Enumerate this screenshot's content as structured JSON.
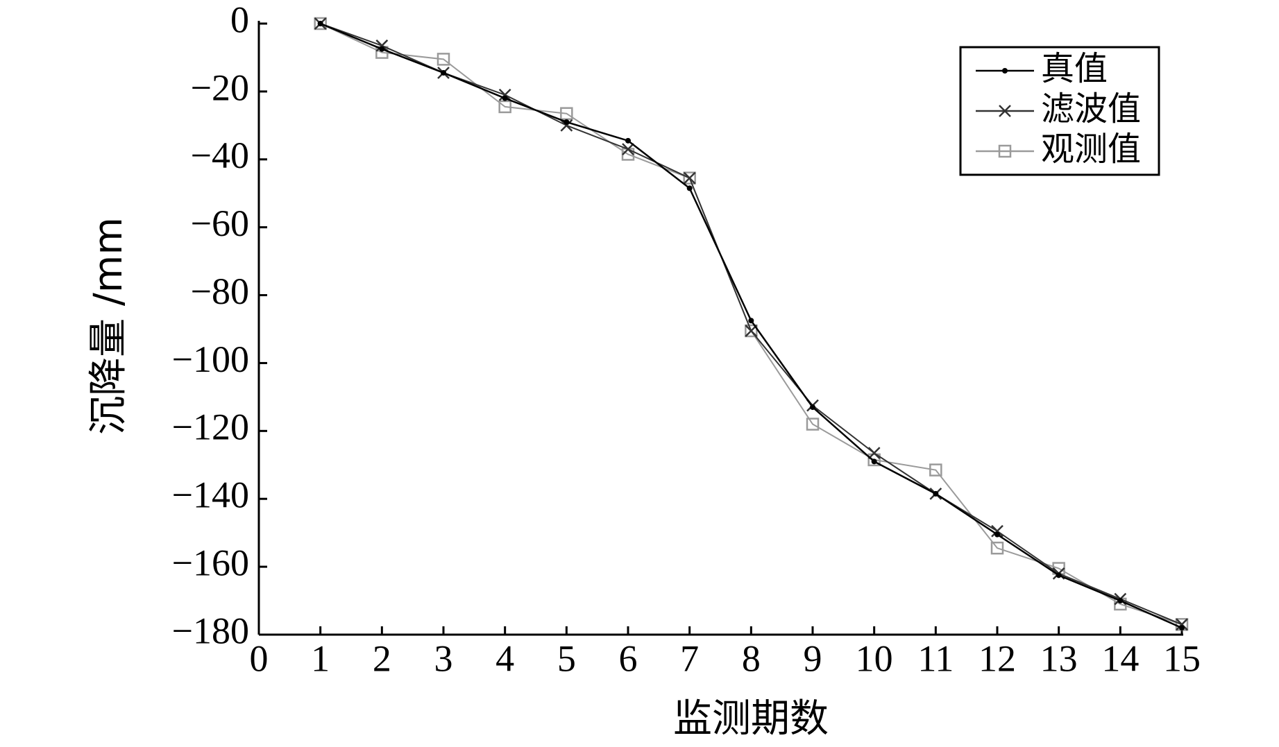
{
  "chart_data": {
    "type": "line",
    "x_label": "监测期数",
    "y_label": "沉降量 /mm",
    "x": [
      1,
      2,
      3,
      4,
      5,
      6,
      7,
      8,
      9,
      10,
      11,
      12,
      13,
      14,
      15
    ],
    "series": [
      {
        "name": "真值",
        "color": "#000000",
        "marker": "dot",
        "values": [
          0,
          -7.5,
          -14.5,
          -22,
          -29,
          -34.5,
          -48.5,
          -87.5,
          -113,
          -129,
          -138.5,
          -150.5,
          -162.5,
          -170,
          -178
        ]
      },
      {
        "name": "滤波值",
        "color": "#333333",
        "marker": "x",
        "values": [
          0,
          -6.5,
          -14.5,
          -21,
          -30,
          -37,
          -45.5,
          -90.5,
          -112.5,
          -126.5,
          -138.5,
          -149.5,
          -162,
          -169.5,
          -177
        ]
      },
      {
        "name": "观测值",
        "color": "#9a9a9a",
        "marker": "square",
        "values": [
          0,
          -8.5,
          -10.5,
          -24.5,
          -26.5,
          -38.5,
          -45.5,
          -90.5,
          -118,
          -128.5,
          -131.5,
          -154.5,
          -160.5,
          -171,
          -177
        ]
      }
    ],
    "xlim": [
      0,
      15
    ],
    "xticks": [
      0,
      1,
      2,
      3,
      4,
      5,
      6,
      7,
      8,
      9,
      10,
      11,
      12,
      13,
      14,
      15
    ],
    "ylim": [
      -180,
      0
    ],
    "yticks": [
      0,
      {
        "value": -20,
        "label": "−20"
      },
      {
        "value": -40,
        "label": "−40"
      },
      {
        "value": -60,
        "label": "−60"
      },
      {
        "value": -80,
        "label": "−80"
      },
      {
        "value": -100,
        "label": "−100"
      },
      {
        "value": -120,
        "label": "−120"
      },
      {
        "value": -140,
        "label": "−140"
      },
      {
        "value": -160,
        "label": "−160"
      },
      {
        "value": -180,
        "label": "−180"
      }
    ],
    "grid": false,
    "legend": "upper right"
  }
}
